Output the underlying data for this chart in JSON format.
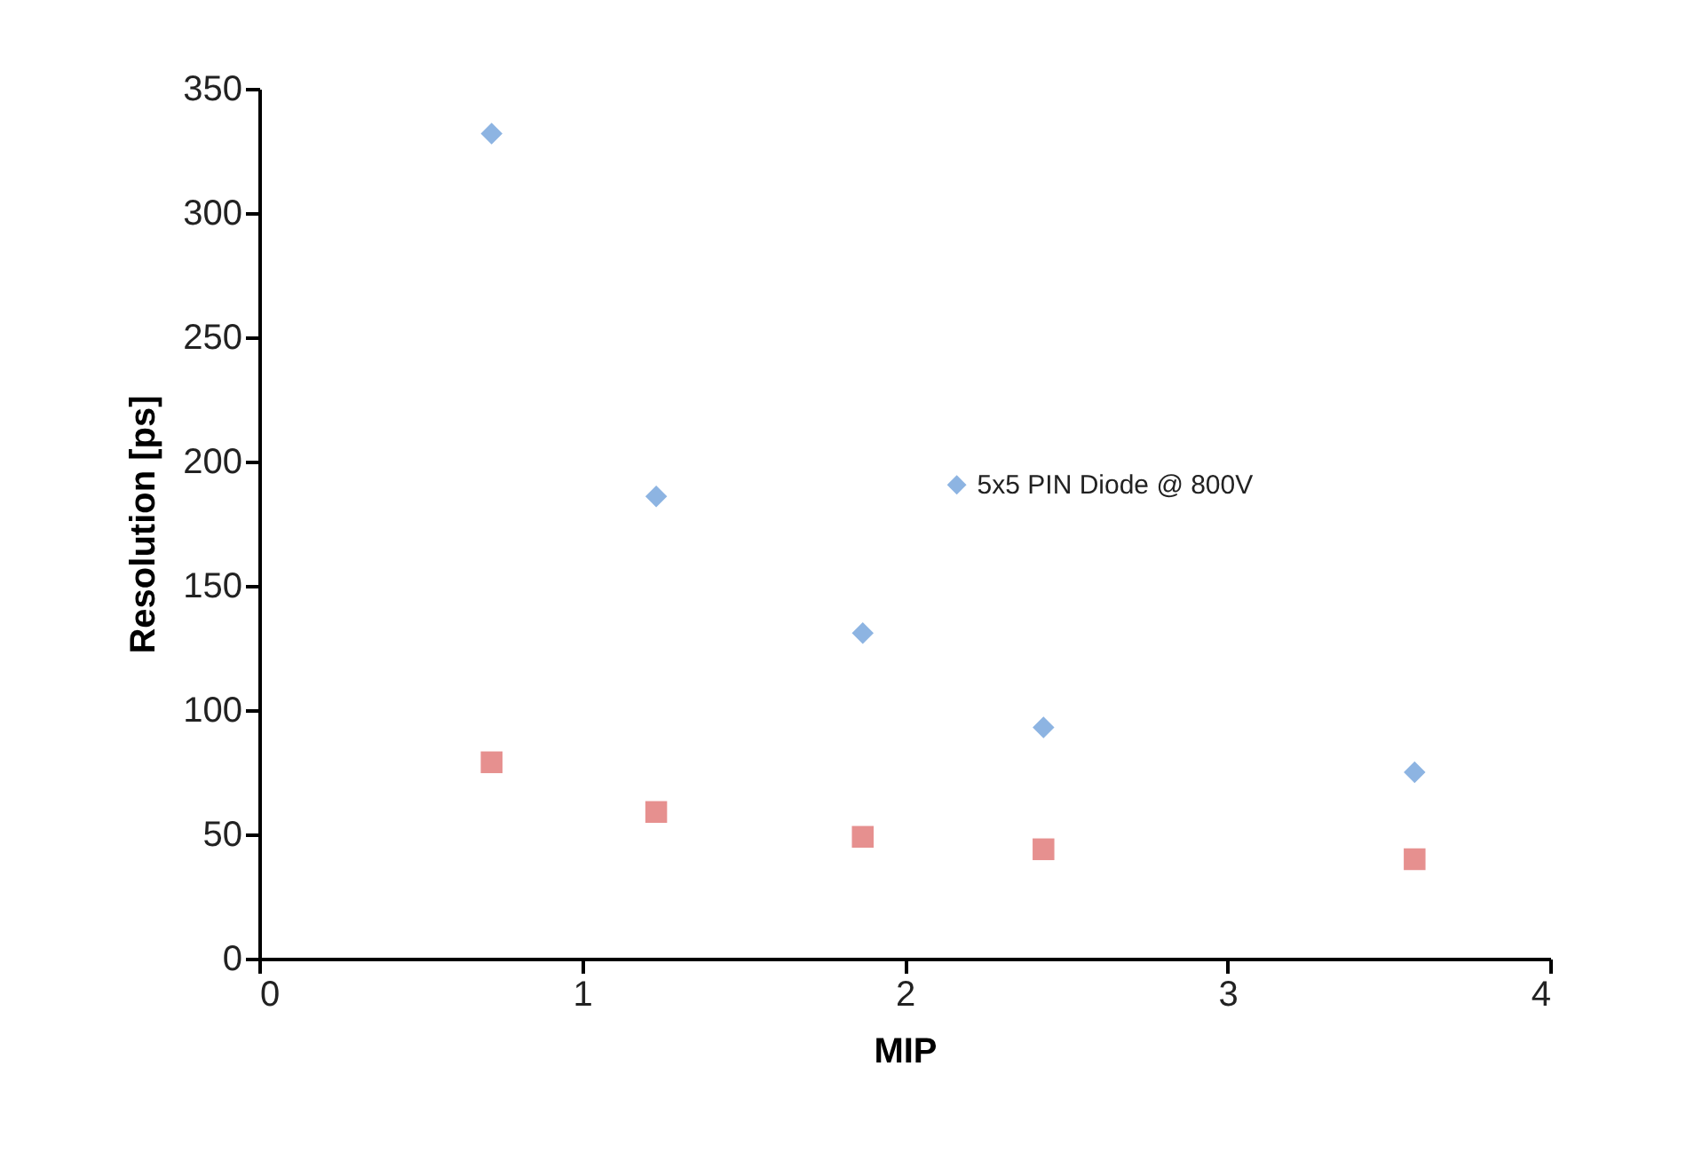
{
  "chart_data": {
    "type": "scatter",
    "xlabel": "MIP",
    "ylabel": "Resolution [ps]",
    "x": [
      0.72,
      1.23,
      1.87,
      2.43,
      3.58
    ],
    "series": [
      {
        "name": "5x5 PIN Diode @ 800V",
        "color": "#8db4e2",
        "marker": "diamond",
        "values": [
          332,
          186,
          131,
          93,
          75
        ]
      },
      {
        "color": "#e6908f",
        "marker": "square",
        "values": [
          79,
          59,
          49,
          44,
          40
        ]
      }
    ],
    "xlim": [
      0,
      4
    ],
    "xticks": [
      0,
      1,
      2,
      3,
      4
    ],
    "ylim": [
      0,
      350
    ],
    "yticks": [
      0,
      50,
      100,
      150,
      200,
      250,
      300,
      350
    ],
    "grid": false,
    "legend": "right"
  }
}
